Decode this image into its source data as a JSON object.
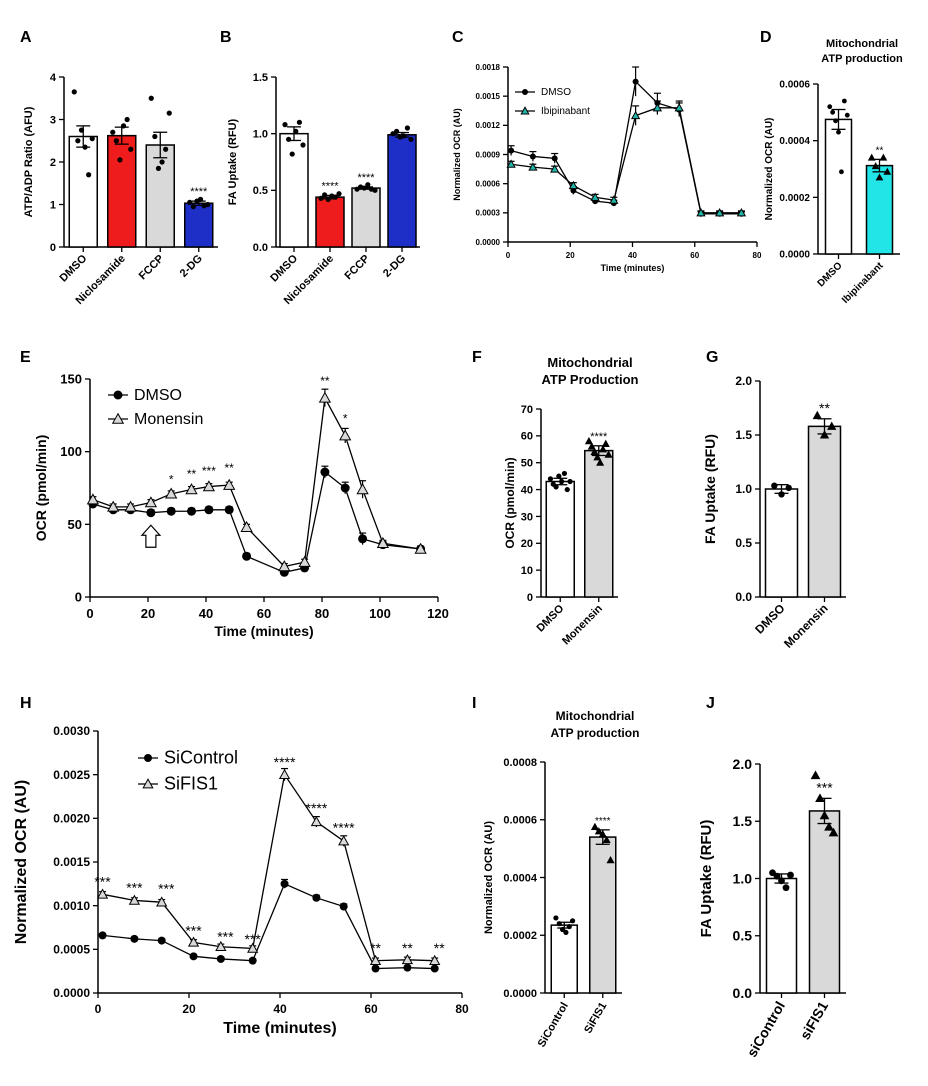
{
  "chart_data": [
    {
      "panel": "A",
      "type": "bar",
      "title": "",
      "xlabel": "",
      "ylabel": "ATP/ADP Ratio (AFU)",
      "ylim": [
        0,
        4
      ],
      "yticks": [
        "0",
        "1",
        "2",
        "3",
        "4"
      ],
      "categories": [
        "DMSO",
        "Niclosamide",
        "FCCP",
        "2-DG"
      ],
      "values": [
        2.6,
        2.62,
        2.4,
        1.03
      ],
      "errors": [
        0.25,
        0.2,
        0.3,
        0.05
      ],
      "colors": [
        "#ffffff",
        "#ee1c1c",
        "#d9d9d9",
        "#1e2fc8"
      ],
      "significance": [
        "",
        "",
        "",
        "****"
      ],
      "points": [
        [
          3.65,
          2.5,
          2.75,
          2.35,
          1.7,
          2.55
        ],
        [
          2.7,
          2.5,
          2.05,
          2.85,
          3.0,
          2.3
        ],
        [
          3.5,
          2.6,
          1.85,
          2.0,
          2.3,
          3.15
        ],
        [
          1.05,
          0.95,
          1.08,
          1.12,
          0.97,
          1.0
        ]
      ]
    },
    {
      "panel": "B",
      "type": "bar",
      "title": "",
      "xlabel": "",
      "ylabel": "FA Uptake (RFU)",
      "ylim": [
        0,
        1.5
      ],
      "yticks": [
        "0.0",
        "0.5",
        "1.0",
        "1.5"
      ],
      "categories": [
        "DMSO",
        "Niclosamide",
        "FCCP",
        "2-DG"
      ],
      "values": [
        1.0,
        0.44,
        0.52,
        0.99
      ],
      "errors": [
        0.06,
        0.015,
        0.01,
        0.02
      ],
      "colors": [
        "#ffffff",
        "#ee1c1c",
        "#d9d9d9",
        "#1e2fc8"
      ],
      "significance": [
        "",
        "****",
        "****",
        ""
      ],
      "points": [
        [
          1.08,
          0.95,
          0.82,
          1.02,
          1.1,
          0.9
        ],
        [
          0.43,
          0.46,
          0.42,
          0.45,
          0.44,
          0.47
        ],
        [
          0.51,
          0.53,
          0.52,
          0.55,
          0.51,
          0.5
        ],
        [
          1.0,
          1.02,
          0.97,
          0.98,
          1.05,
          0.95
        ]
      ]
    },
    {
      "panel": "C",
      "type": "line",
      "title": "",
      "xlabel": "Time (minutes)",
      "ylabel": "Normalized OCR (AU)",
      "xlim": [
        0,
        80
      ],
      "ylim": [
        0,
        0.0018
      ],
      "xticks": [
        "0",
        "20",
        "40",
        "60",
        "80"
      ],
      "yticks": [
        "0.0000",
        "0.0003",
        "0.0006",
        "0.0009",
        "0.0012",
        "0.0015",
        "0.0018"
      ],
      "legend": [
        "DMSO",
        "Ibipinabant"
      ],
      "series": [
        {
          "name": "DMSO",
          "marker": "circle",
          "color": "#000000",
          "x": [
            1,
            8,
            15,
            21,
            28,
            34,
            41,
            48,
            55,
            62,
            68,
            75
          ],
          "y": [
            0.00094,
            0.00088,
            0.00086,
            0.00053,
            0.00042,
            0.0004,
            0.00165,
            0.00143,
            0.00136,
            0.00029,
            0.00029,
            0.00029
          ],
          "err": [
            5e-05,
            5e-05,
            5e-05,
            4e-05,
            3e-05,
            3e-05,
            0.00015,
            0.0001,
            7e-05,
            2e-05,
            2e-05,
            2e-05
          ]
        },
        {
          "name": "Ibipinabant",
          "marker": "triangle",
          "color": "#1fb5a8",
          "x": [
            1,
            8,
            15,
            21,
            28,
            34,
            41,
            48,
            55,
            62,
            68,
            75
          ],
          "y": [
            0.0008,
            0.00077,
            0.00075,
            0.00058,
            0.00046,
            0.00043,
            0.0013,
            0.00138,
            0.00138,
            0.0003,
            0.0003,
            0.0003
          ],
          "err": [
            3e-05,
            3e-05,
            3e-05,
            3e-05,
            3e-05,
            3e-05,
            0.0001,
            7e-05,
            7e-05,
            2e-05,
            2e-05,
            2e-05
          ]
        }
      ]
    },
    {
      "panel": "D",
      "type": "bar",
      "title": "Mitochondrial ATP production",
      "xlabel": "",
      "ylabel": "Normalized OCR (AU)",
      "ylim": [
        0,
        0.0006
      ],
      "yticks": [
        "0.0000",
        "0.0002",
        "0.0004",
        "0.0006"
      ],
      "categories": [
        "DMSO",
        "Ibipinabant"
      ],
      "values": [
        0.000475,
        0.000312
      ],
      "errors": [
        3.5e-05,
        2.2e-05
      ],
      "colors": [
        "#ffffff",
        "#22e5e8"
      ],
      "significance": [
        "",
        "**"
      ],
      "points": [
        [
          0.00052,
          0.0005,
          0.00047,
          0.00043,
          0.00029,
          0.00054,
          0.00049
        ],
        [
          0.00034,
          0.00031,
          0.00027,
          0.00034,
          0.00029
        ]
      ]
    },
    {
      "panel": "E",
      "type": "line",
      "title": "",
      "xlabel": "Time (minutes)",
      "ylabel": "OCR (pmol/min)",
      "xlim": [
        0,
        120
      ],
      "ylim": [
        0,
        150
      ],
      "xticks": [
        "0",
        "20",
        "40",
        "60",
        "80",
        "100",
        "120"
      ],
      "yticks": [
        "0",
        "50",
        "100",
        "150"
      ],
      "legend": [
        "DMSO",
        "Monensin"
      ],
      "significance": [
        {
          "x": 28,
          "y": 78,
          "text": "*"
        },
        {
          "x": 35,
          "y": 82,
          "text": "**"
        },
        {
          "x": 41,
          "y": 84,
          "text": "***"
        },
        {
          "x": 48,
          "y": 86,
          "text": "**"
        },
        {
          "x": 81,
          "y": 146,
          "text": "**"
        },
        {
          "x": 88,
          "y": 120,
          "text": "*"
        }
      ],
      "series": [
        {
          "name": "DMSO",
          "marker": "circle",
          "color": "#000000",
          "x": [
            1,
            8,
            14,
            21,
            28,
            35,
            41,
            48,
            54,
            67,
            74,
            81,
            88,
            94,
            101,
            114
          ],
          "y": [
            64,
            60,
            60,
            58,
            59,
            59,
            60,
            60,
            28,
            17,
            20,
            86,
            75,
            40,
            36,
            33
          ],
          "err": [
            2,
            2,
            2,
            2,
            2,
            2,
            2,
            2,
            2,
            2,
            2,
            4,
            4,
            4,
            2,
            2
          ]
        },
        {
          "name": "Monensin",
          "marker": "triangle",
          "color": "#000000",
          "x": [
            1,
            8,
            14,
            21,
            28,
            35,
            41,
            48,
            54,
            67,
            74,
            81,
            88,
            94,
            101,
            114
          ],
          "y": [
            67,
            62,
            62,
            65,
            71,
            74,
            76,
            77,
            48,
            21,
            24,
            137,
            111,
            74,
            37,
            33
          ],
          "err": [
            2,
            2,
            2,
            2,
            2,
            2,
            2,
            2,
            2,
            2,
            2,
            6,
            5,
            6,
            2,
            2
          ]
        }
      ]
    },
    {
      "panel": "F",
      "type": "bar",
      "title": "Mitochondrial ATP Production",
      "xlabel": "",
      "ylabel": "OCR (pmol/min)",
      "ylim": [
        0,
        70
      ],
      "yticks": [
        "0",
        "10",
        "20",
        "30",
        "40",
        "50",
        "60",
        "70"
      ],
      "categories": [
        "DMSO",
        "Monensin"
      ],
      "values": [
        43,
        54.5
      ],
      "errors": [
        1.2,
        1.8
      ],
      "colors": [
        "#ffffff",
        "#d9d9d9"
      ],
      "significance": [
        "",
        "****"
      ],
      "points": [
        [
          44,
          42,
          41,
          45,
          43,
          46,
          40,
          43
        ],
        [
          58,
          56,
          54,
          52,
          50,
          55,
          57,
          53
        ]
      ]
    },
    {
      "panel": "G",
      "type": "bar",
      "title": "",
      "xlabel": "",
      "ylabel": "FA Uptake (RFU)",
      "ylim": [
        0,
        2
      ],
      "yticks": [
        "0.0",
        "0.5",
        "1.0",
        "1.5",
        "2.0"
      ],
      "categories": [
        "DMSO",
        "Monensin"
      ],
      "values": [
        1.0,
        1.58
      ],
      "errors": [
        0.04,
        0.07
      ],
      "colors": [
        "#ffffff",
        "#d9d9d9"
      ],
      "significance": [
        "",
        "**"
      ],
      "points": [
        [
          1.03,
          0.95,
          1.01
        ],
        [
          1.68,
          1.5,
          1.58
        ]
      ]
    },
    {
      "panel": "H",
      "type": "line",
      "title": "",
      "xlabel": "Time (minutes)",
      "ylabel": "Normalized OCR (AU)",
      "xlim": [
        0,
        80
      ],
      "ylim": [
        0,
        0.003
      ],
      "xticks": [
        "0",
        "20",
        "40",
        "60",
        "80"
      ],
      "yticks": [
        "0.0000",
        "0.0005",
        "0.0010",
        "0.0015",
        "0.0020",
        "0.0025",
        "0.0030"
      ],
      "legend": [
        "SiControl",
        "SiFIS1"
      ],
      "significance": [
        {
          "x": 1,
          "y": 0.00122,
          "text": "***"
        },
        {
          "x": 8,
          "y": 0.00115,
          "text": "***"
        },
        {
          "x": 15,
          "y": 0.00114,
          "text": "***"
        },
        {
          "x": 21,
          "y": 0.00066,
          "text": "***"
        },
        {
          "x": 28,
          "y": 0.00059,
          "text": "***"
        },
        {
          "x": 34,
          "y": 0.00056,
          "text": "***"
        },
        {
          "x": 41,
          "y": 0.00259,
          "text": "****"
        },
        {
          "x": 48,
          "y": 0.00206,
          "text": "****"
        },
        {
          "x": 54,
          "y": 0.00184,
          "text": "****"
        },
        {
          "x": 61,
          "y": 0.00046,
          "text": "**"
        },
        {
          "x": 68,
          "y": 0.00046,
          "text": "**"
        },
        {
          "x": 75,
          "y": 0.00046,
          "text": "**"
        }
      ],
      "series": [
        {
          "name": "SiControl",
          "marker": "circle",
          "color": "#000000",
          "x": [
            1,
            8,
            14,
            21,
            27,
            34,
            41,
            48,
            54,
            61,
            68,
            74
          ],
          "y": [
            0.00066,
            0.00062,
            0.0006,
            0.00042,
            0.00039,
            0.00037,
            0.00125,
            0.00109,
            0.00099,
            0.00028,
            0.00029,
            0.00028
          ],
          "err": [
            2e-05,
            2e-05,
            2e-05,
            2e-05,
            2e-05,
            2e-05,
            5e-05,
            3e-05,
            3e-05,
            2e-05,
            2e-05,
            2e-05
          ]
        },
        {
          "name": "SiFIS1",
          "marker": "triangle",
          "color": "#000000",
          "x": [
            1,
            8,
            14,
            21,
            27,
            34,
            41,
            48,
            54,
            61,
            68,
            74
          ],
          "y": [
            0.00113,
            0.00106,
            0.00104,
            0.00058,
            0.00053,
            0.00051,
            0.0025,
            0.00196,
            0.00174,
            0.00037,
            0.00038,
            0.00037
          ],
          "err": [
            3e-05,
            3e-05,
            3e-05,
            3e-05,
            3e-05,
            3e-05,
            7e-05,
            6e-05,
            6e-05,
            3e-05,
            3e-05,
            3e-05
          ]
        }
      ]
    },
    {
      "panel": "I",
      "type": "bar",
      "title": "Mitochondrial ATP production",
      "xlabel": "",
      "ylabel": "Normalized OCR (AU)",
      "ylim": [
        0,
        0.0008
      ],
      "yticks": [
        "0.0000",
        "0.0002",
        "0.0004",
        "0.0006",
        "0.0008"
      ],
      "categories": [
        "SiControl",
        "SiFIS1"
      ],
      "values": [
        0.000235,
        0.00054
      ],
      "errors": [
        1e-05,
        2.5e-05
      ],
      "colors": [
        "#ffffff",
        "#d9d9d9"
      ],
      "significance": [
        "",
        "****"
      ],
      "points": [
        [
          0.00026,
          0.00024,
          0.00022,
          0.00021,
          0.00023,
          0.00025
        ],
        [
          0.000575,
          0.00056,
          0.00055,
          0.00053,
          0.00046
        ]
      ]
    },
    {
      "panel": "J",
      "type": "bar",
      "title": "",
      "xlabel": "",
      "ylabel": "FA Uptake (RFU)",
      "ylim": [
        0,
        2
      ],
      "yticks": [
        "0.0",
        "0.5",
        "1.0",
        "1.5",
        "2.0"
      ],
      "categories": [
        "siControl",
        "siFIS1"
      ],
      "values": [
        1.0,
        1.59
      ],
      "errors": [
        0.04,
        0.11
      ],
      "colors": [
        "#ffffff",
        "#d9d9d9"
      ],
      "significance": [
        "",
        "***"
      ],
      "points": [
        [
          1.05,
          1.02,
          0.98,
          0.92,
          1.03
        ],
        [
          1.9,
          1.7,
          1.55,
          1.45,
          1.4
        ]
      ]
    }
  ]
}
